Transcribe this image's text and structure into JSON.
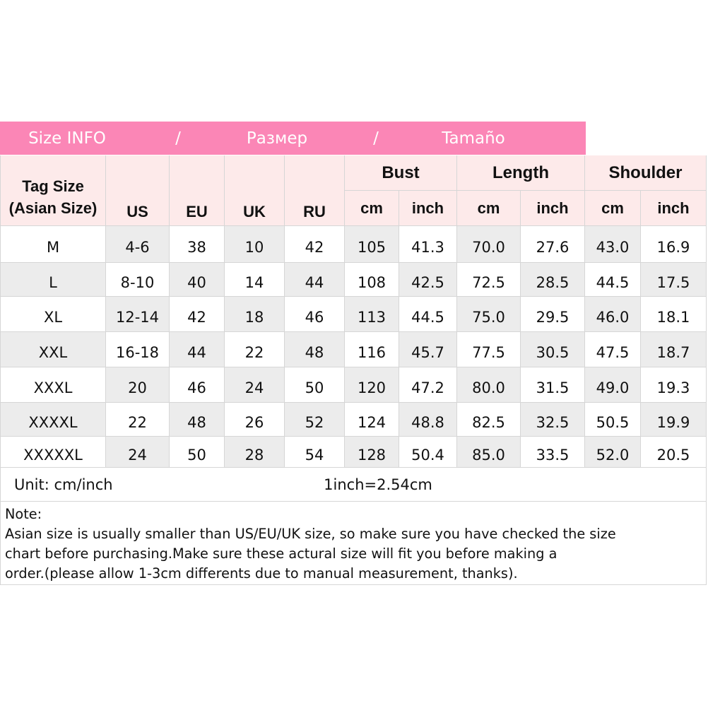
{
  "banner": [
    "Size INFO",
    "/",
    "Размер",
    "/",
    "Tamaño"
  ],
  "table": {
    "tag_size": [
      "Tag Size",
      "(Asian Size)"
    ],
    "columns": [
      "US",
      "EU",
      "UK",
      "RU"
    ],
    "groups": [
      "Bust",
      "Length",
      "Shoulder"
    ],
    "units": [
      "cm",
      "inch",
      "cm",
      "inch",
      "cm",
      "inch"
    ],
    "rows": [
      [
        "M",
        "4-6",
        "38",
        "10",
        "42",
        "105",
        "41.3",
        "70.0",
        "27.6",
        "43.0",
        "16.9"
      ],
      [
        "L",
        "8-10",
        "40",
        "14",
        "44",
        "108",
        "42.5",
        "72.5",
        "28.5",
        "44.5",
        "17.5"
      ],
      [
        "XL",
        "12-14",
        "42",
        "18",
        "46",
        "113",
        "44.5",
        "75.0",
        "29.5",
        "46.0",
        "18.1"
      ],
      [
        "XXL",
        "16-18",
        "44",
        "22",
        "48",
        "116",
        "45.7",
        "77.5",
        "30.5",
        "47.5",
        "18.7"
      ],
      [
        "XXXL",
        "20",
        "46",
        "24",
        "50",
        "120",
        "47.2",
        "80.0",
        "31.5",
        "49.0",
        "19.3"
      ],
      [
        "XXXXL",
        "22",
        "48",
        "26",
        "52",
        "124",
        "48.8",
        "82.5",
        "32.5",
        "50.5",
        "19.9"
      ],
      [
        "XXXXXL",
        "24",
        "50",
        "28",
        "54",
        "128",
        "50.4",
        "85.0",
        "33.5",
        "52.0",
        "20.5"
      ]
    ]
  },
  "footer": {
    "unit": "Unit: cm/inch",
    "conversion": "1inch=2.54cm"
  },
  "note": {
    "title": "Note:",
    "lines": [
      "Asian size is usually smaller than US/EU/UK size, so make sure you have checked the size",
      "chart before purchasing.Make sure these actural size will fit you before making a",
      "order.(please allow 1-3cm differents due to manual measurement, thanks)."
    ]
  }
}
